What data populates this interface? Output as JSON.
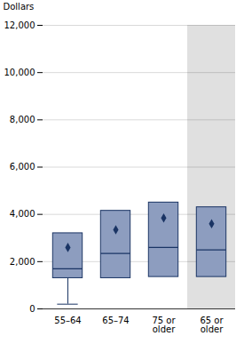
{
  "chart_data": {
    "type": "box",
    "ylabel": "Dollars",
    "categories": [
      "55–64",
      "65–74",
      "75 or\nolder",
      "65 or\nolder"
    ],
    "boxes": [
      {
        "whislo": 200,
        "q1": 1300,
        "med": 1700,
        "q3": 3200,
        "whishi": null,
        "mean": 2600
      },
      {
        "whislo": null,
        "q1": 1300,
        "med": 2350,
        "q3": 4150,
        "whishi": null,
        "mean": 3350
      },
      {
        "whislo": null,
        "q1": 1350,
        "med": 2600,
        "q3": 4500,
        "whishi": null,
        "mean": 3850
      },
      {
        "whislo": null,
        "q1": 1350,
        "med": 2500,
        "q3": 4300,
        "whishi": null,
        "mean": 3600
      }
    ],
    "color": "#8d9dbf",
    "edge_color": "#1a3464",
    "highlight": "65 or\nolder",
    "highlight_color": "#e0e0e0",
    "ylim": [
      0,
      12000
    ],
    "yticks": [
      0,
      {
        "value": 2000,
        "label": "2,000"
      },
      {
        "value": 4000,
        "label": "4,000"
      },
      {
        "value": 6000,
        "label": "6,000"
      },
      {
        "value": 8000,
        "label": "8,000"
      },
      {
        "value": 10000,
        "label": "10,000"
      },
      {
        "value": 12000,
        "label": "12,000"
      }
    ],
    "grid": true
  }
}
